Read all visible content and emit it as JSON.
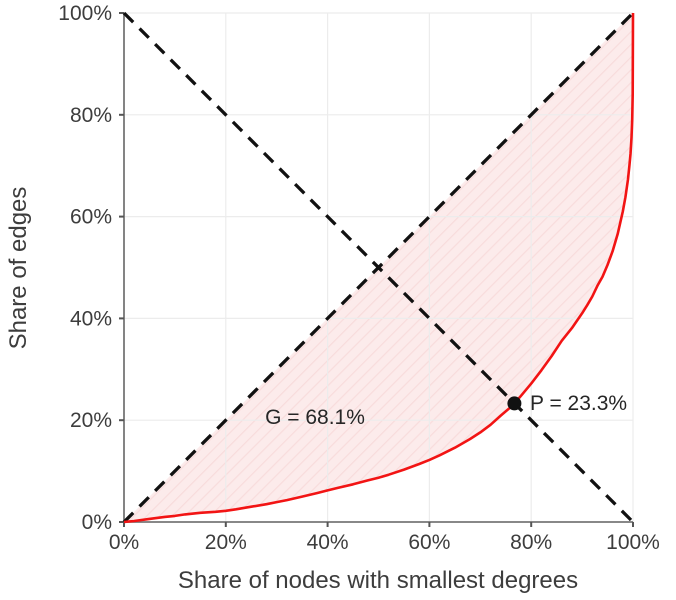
{
  "chart_data": {
    "type": "line",
    "title": "",
    "xlabel": "Share of nodes with smallest degrees",
    "ylabel": "Share of edges",
    "xlim": [
      0,
      100
    ],
    "ylim": [
      0,
      100
    ],
    "xticks": [
      0,
      20,
      40,
      60,
      80,
      100
    ],
    "yticks": [
      0,
      20,
      40,
      60,
      80,
      100
    ],
    "tick_suffix": "%",
    "grid": true,
    "legend": false,
    "series": [
      {
        "name": "lorenz-curve",
        "style": "solid",
        "color": "#f21414",
        "width": 2.6,
        "points": [
          [
            0,
            0
          ],
          [
            2,
            0.2
          ],
          [
            5,
            0.6
          ],
          [
            8,
            1.0
          ],
          [
            10,
            1.2
          ],
          [
            12,
            1.5
          ],
          [
            15,
            1.8
          ],
          [
            18,
            2.0
          ],
          [
            20,
            2.2
          ],
          [
            22,
            2.5
          ],
          [
            25,
            3.0
          ],
          [
            28,
            3.5
          ],
          [
            30,
            3.9
          ],
          [
            32,
            4.3
          ],
          [
            35,
            5.0
          ],
          [
            38,
            5.7
          ],
          [
            40,
            6.2
          ],
          [
            42,
            6.7
          ],
          [
            45,
            7.4
          ],
          [
            48,
            8.2
          ],
          [
            50,
            8.7
          ],
          [
            52,
            9.3
          ],
          [
            55,
            10.3
          ],
          [
            58,
            11.4
          ],
          [
            60,
            12.2
          ],
          [
            62,
            13.1
          ],
          [
            65,
            14.6
          ],
          [
            68,
            16.3
          ],
          [
            70,
            17.6
          ],
          [
            72,
            19.1
          ],
          [
            74,
            20.9
          ],
          [
            76,
            22.6
          ],
          [
            76.7,
            23.3
          ],
          [
            78,
            24.8
          ],
          [
            80,
            27.2
          ],
          [
            82,
            29.8
          ],
          [
            84,
            32.6
          ],
          [
            86,
            35.6
          ],
          [
            88,
            38.1
          ],
          [
            90,
            41.0
          ],
          [
            91,
            42.6
          ],
          [
            92,
            44.3
          ],
          [
            93,
            46.4
          ],
          [
            94,
            48.2
          ],
          [
            95,
            50.5
          ],
          [
            96,
            53.2
          ],
          [
            97,
            56.6
          ],
          [
            98,
            61.0
          ],
          [
            98.5,
            63.8
          ],
          [
            99,
            67.2
          ],
          [
            99.3,
            70.0
          ],
          [
            99.5,
            72.3
          ],
          [
            99.7,
            75.5
          ],
          [
            99.85,
            79.0
          ],
          [
            99.95,
            84.0
          ],
          [
            100,
            100
          ]
        ]
      },
      {
        "name": "equality-diagonal",
        "style": "dashed",
        "color": "#111111",
        "width": 3.3,
        "points": [
          [
            0,
            0
          ],
          [
            100,
            100
          ]
        ]
      },
      {
        "name": "anti-diagonal",
        "style": "dashed",
        "color": "#111111",
        "width": 3.3,
        "points": [
          [
            0,
            100
          ],
          [
            100,
            0
          ]
        ]
      }
    ],
    "shaded_region": {
      "between": [
        "equality-diagonal",
        "lorenz-curve"
      ],
      "fill": "#fcebeb",
      "hatch_color": "#f8dcdc"
    },
    "marker": {
      "name": "intersection-point",
      "x": 76.7,
      "y": 23.3,
      "radius": 7,
      "color": "#111111"
    },
    "annotations": [
      {
        "name": "gini-label",
        "text": "G = 68.1%",
        "x": 37.5,
        "y": 20.8
      },
      {
        "name": "p-label",
        "text": "P = 23.3%",
        "x": 79.5,
        "y": 23.2
      }
    ]
  },
  "colors": {
    "curve_red": "#f21414",
    "fill_pink": "#fcebeb",
    "dashed_black": "#111111",
    "grid_gray": "#ececec",
    "axis_gray": "#777777",
    "text_gray": "#3d3d3d"
  }
}
